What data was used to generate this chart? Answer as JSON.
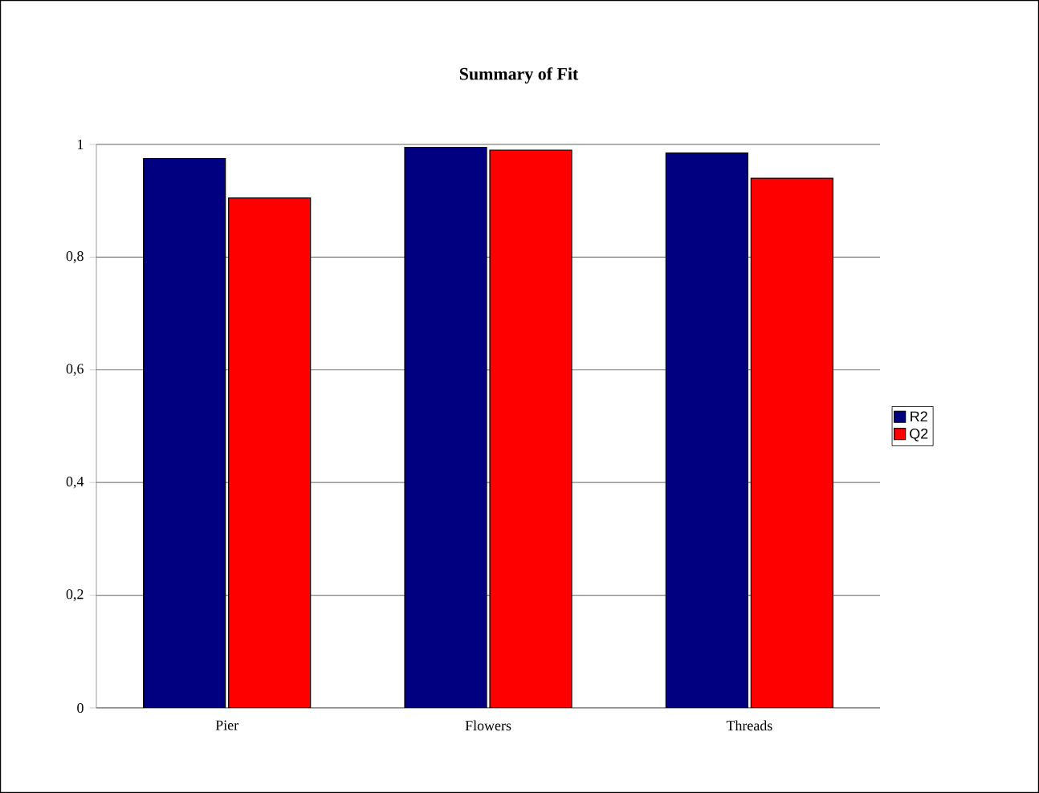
{
  "chart_data": {
    "type": "bar",
    "title": "Summary of Fit",
    "categories": [
      "Pier",
      "Flowers",
      "Threads"
    ],
    "series": [
      {
        "name": "R2",
        "color": "#000080",
        "values": [
          0.975,
          0.995,
          0.985
        ]
      },
      {
        "name": "Q2",
        "color": "#ff0000",
        "values": [
          0.905,
          0.99,
          0.94
        ]
      }
    ],
    "ylim": [
      0,
      1
    ],
    "yticks": [
      0,
      {
        "value": 0.2,
        "label": "0,2"
      },
      {
        "value": 0.4,
        "label": "0,4"
      },
      {
        "value": 0.6,
        "label": "0,6"
      },
      {
        "value": 0.8,
        "label": "0,8"
      },
      1
    ],
    "grid": "y",
    "legend": "right"
  }
}
